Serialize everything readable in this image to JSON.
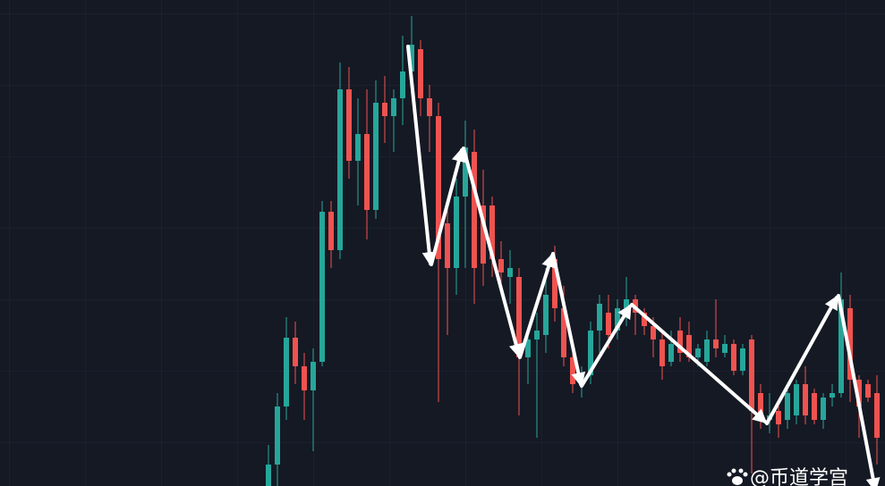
{
  "chart_data": {
    "type": "candlestick",
    "open": [
      0,
      24,
      89,
      166,
      134,
      107,
      139,
      307,
      264,
      444,
      364,
      394,
      309,
      429,
      414,
      434,
      464,
      489,
      434,
      414,
      294,
      244,
      324,
      374,
      314,
      314,
      254,
      234,
      234,
      144,
      164,
      169,
      254,
      199,
      144,
      114,
      124,
      174,
      194,
      174,
      199,
      209,
      194,
      179,
      164,
      139,
      174,
      169,
      144,
      139,
      164,
      149,
      159,
      129,
      164,
      104,
      74,
      84,
      74,
      79,
      114,
      104,
      74,
      99,
      104,
      199,
      119,
      114,
      104
    ],
    "high": [
      46,
      104,
      189,
      184,
      149,
      154,
      319,
      319,
      474,
      469,
      434,
      444,
      454,
      459,
      444,
      504,
      526,
      499,
      449,
      429,
      314,
      344,
      409,
      399,
      354,
      324,
      274,
      264,
      244,
      174,
      194,
      244,
      269,
      224,
      164,
      134,
      184,
      214,
      214,
      209,
      234,
      214,
      199,
      189,
      174,
      174,
      189,
      184,
      159,
      174,
      209,
      169,
      164,
      159,
      169,
      114,
      104,
      89,
      114,
      119,
      134,
      109,
      104,
      114,
      239,
      214,
      124,
      119,
      124
    ],
    "low": [
      0,
      0,
      74,
      114,
      74,
      39,
      134,
      244,
      254,
      344,
      314,
      276,
      299,
      384,
      374,
      404,
      444,
      414,
      374,
      94,
      169,
      214,
      244,
      204,
      224,
      234,
      214,
      204,
      79,
      114,
      54,
      149,
      184,
      134,
      104,
      99,
      114,
      149,
      154,
      164,
      179,
      169,
      169,
      144,
      119,
      134,
      139,
      139,
      134,
      134,
      144,
      144,
      124,
      124,
      14,
      64,
      59,
      54,
      64,
      69,
      69,
      69,
      64,
      89,
      99,
      94,
      54,
      94,
      24
    ],
    "close": [
      24,
      89,
      166,
      134,
      107,
      139,
      307,
      264,
      444,
      364,
      394,
      309,
      429,
      414,
      434,
      464,
      494,
      434,
      414,
      254,
      244,
      324,
      379,
      244,
      249,
      254,
      239,
      244,
      144,
      164,
      174,
      214,
      199,
      144,
      114,
      124,
      174,
      204,
      169,
      199,
      209,
      194,
      179,
      164,
      134,
      159,
      149,
      144,
      154,
      164,
      154,
      159,
      129,
      154,
      84,
      74,
      79,
      69,
      104,
      114,
      79,
      74,
      99,
      104,
      209,
      119,
      89,
      99,
      54
    ],
    "ylim": [
      0,
      544
    ],
    "up_color": "#26a69a",
    "down_color": "#ef5350",
    "watermark": "@币道学宫"
  }
}
